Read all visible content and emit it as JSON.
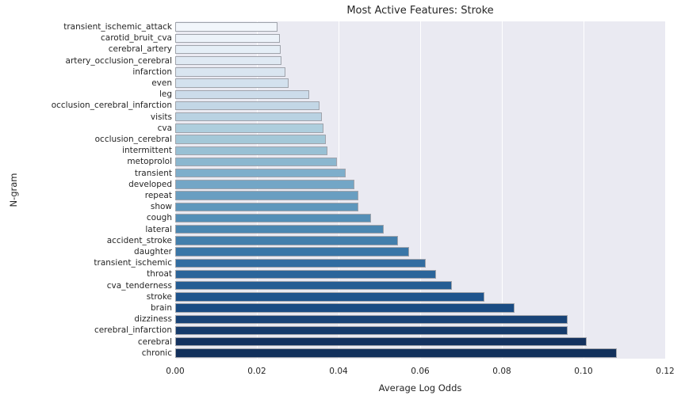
{
  "chart_data": {
    "type": "bar",
    "orientation": "horizontal",
    "title": "Most Active Features: Stroke",
    "xlabel": "Average Log Odds",
    "ylabel": "N-gram",
    "xlim": [
      0,
      0.12
    ],
    "xticks": [
      0,
      0.02,
      0.04,
      0.06,
      0.08,
      0.1,
      0.12
    ],
    "xtick_labels": [
      "0.00",
      "0.02",
      "0.04",
      "0.06",
      "0.08",
      "0.10",
      "0.12"
    ],
    "grid": true,
    "legend": "none",
    "plot_bg_color": "#eaeaf2",
    "grid_color": "#ffffff",
    "bar_edge_color": "#9fa3ab",
    "text_color": "#262626",
    "categories": [
      "transient_ischemic_attack",
      "carotid_bruit_cva",
      "cerebral_artery",
      "artery_occlusion_cerebral",
      "infarction",
      "even",
      "leg",
      "occlusion_cerebral_infarction",
      "visits",
      "cva",
      "occlusion_cerebral",
      "intermittent",
      "metoprolol",
      "transient",
      "developed",
      "repeat",
      "show",
      "cough",
      "lateral",
      "accident_stroke",
      "daughter",
      "transient_ischemic",
      "throat",
      "cva_tenderness",
      "stroke",
      "brain",
      "dizziness",
      "cerebral_infarction",
      "cerebral",
      "chronic"
    ],
    "values": [
      0.025,
      0.0256,
      0.0259,
      0.0261,
      0.027,
      0.0278,
      0.0328,
      0.0353,
      0.0359,
      0.0364,
      0.0369,
      0.0372,
      0.0396,
      0.0417,
      0.0438,
      0.0449,
      0.0449,
      0.0479,
      0.0511,
      0.0545,
      0.0573,
      0.0613,
      0.0639,
      0.0678,
      0.0757,
      0.0831,
      0.0962,
      0.0962,
      0.1008,
      0.1081
    ],
    "bar_colors": [
      "#f2f6fb",
      "#ecf2f9",
      "#e5eef6",
      "#dfe9f3",
      "#d9e5f0",
      "#d3e1ee",
      "#ccdcea",
      "#c3d7e6",
      "#b9d2e2",
      "#aecedd",
      "#a4c8d8",
      "#98c0d4",
      "#8bb7cf",
      "#7eaecb",
      "#73a6c6",
      "#699ec1",
      "#5e97bc",
      "#548fb7",
      "#4b87b1",
      "#437fac",
      "#3a76a7",
      "#326da1",
      "#2b659a",
      "#255d93",
      "#1e548d",
      "#1a4c83",
      "#184377",
      "#163b6b",
      "#14325f",
      "#12305c"
    ]
  }
}
